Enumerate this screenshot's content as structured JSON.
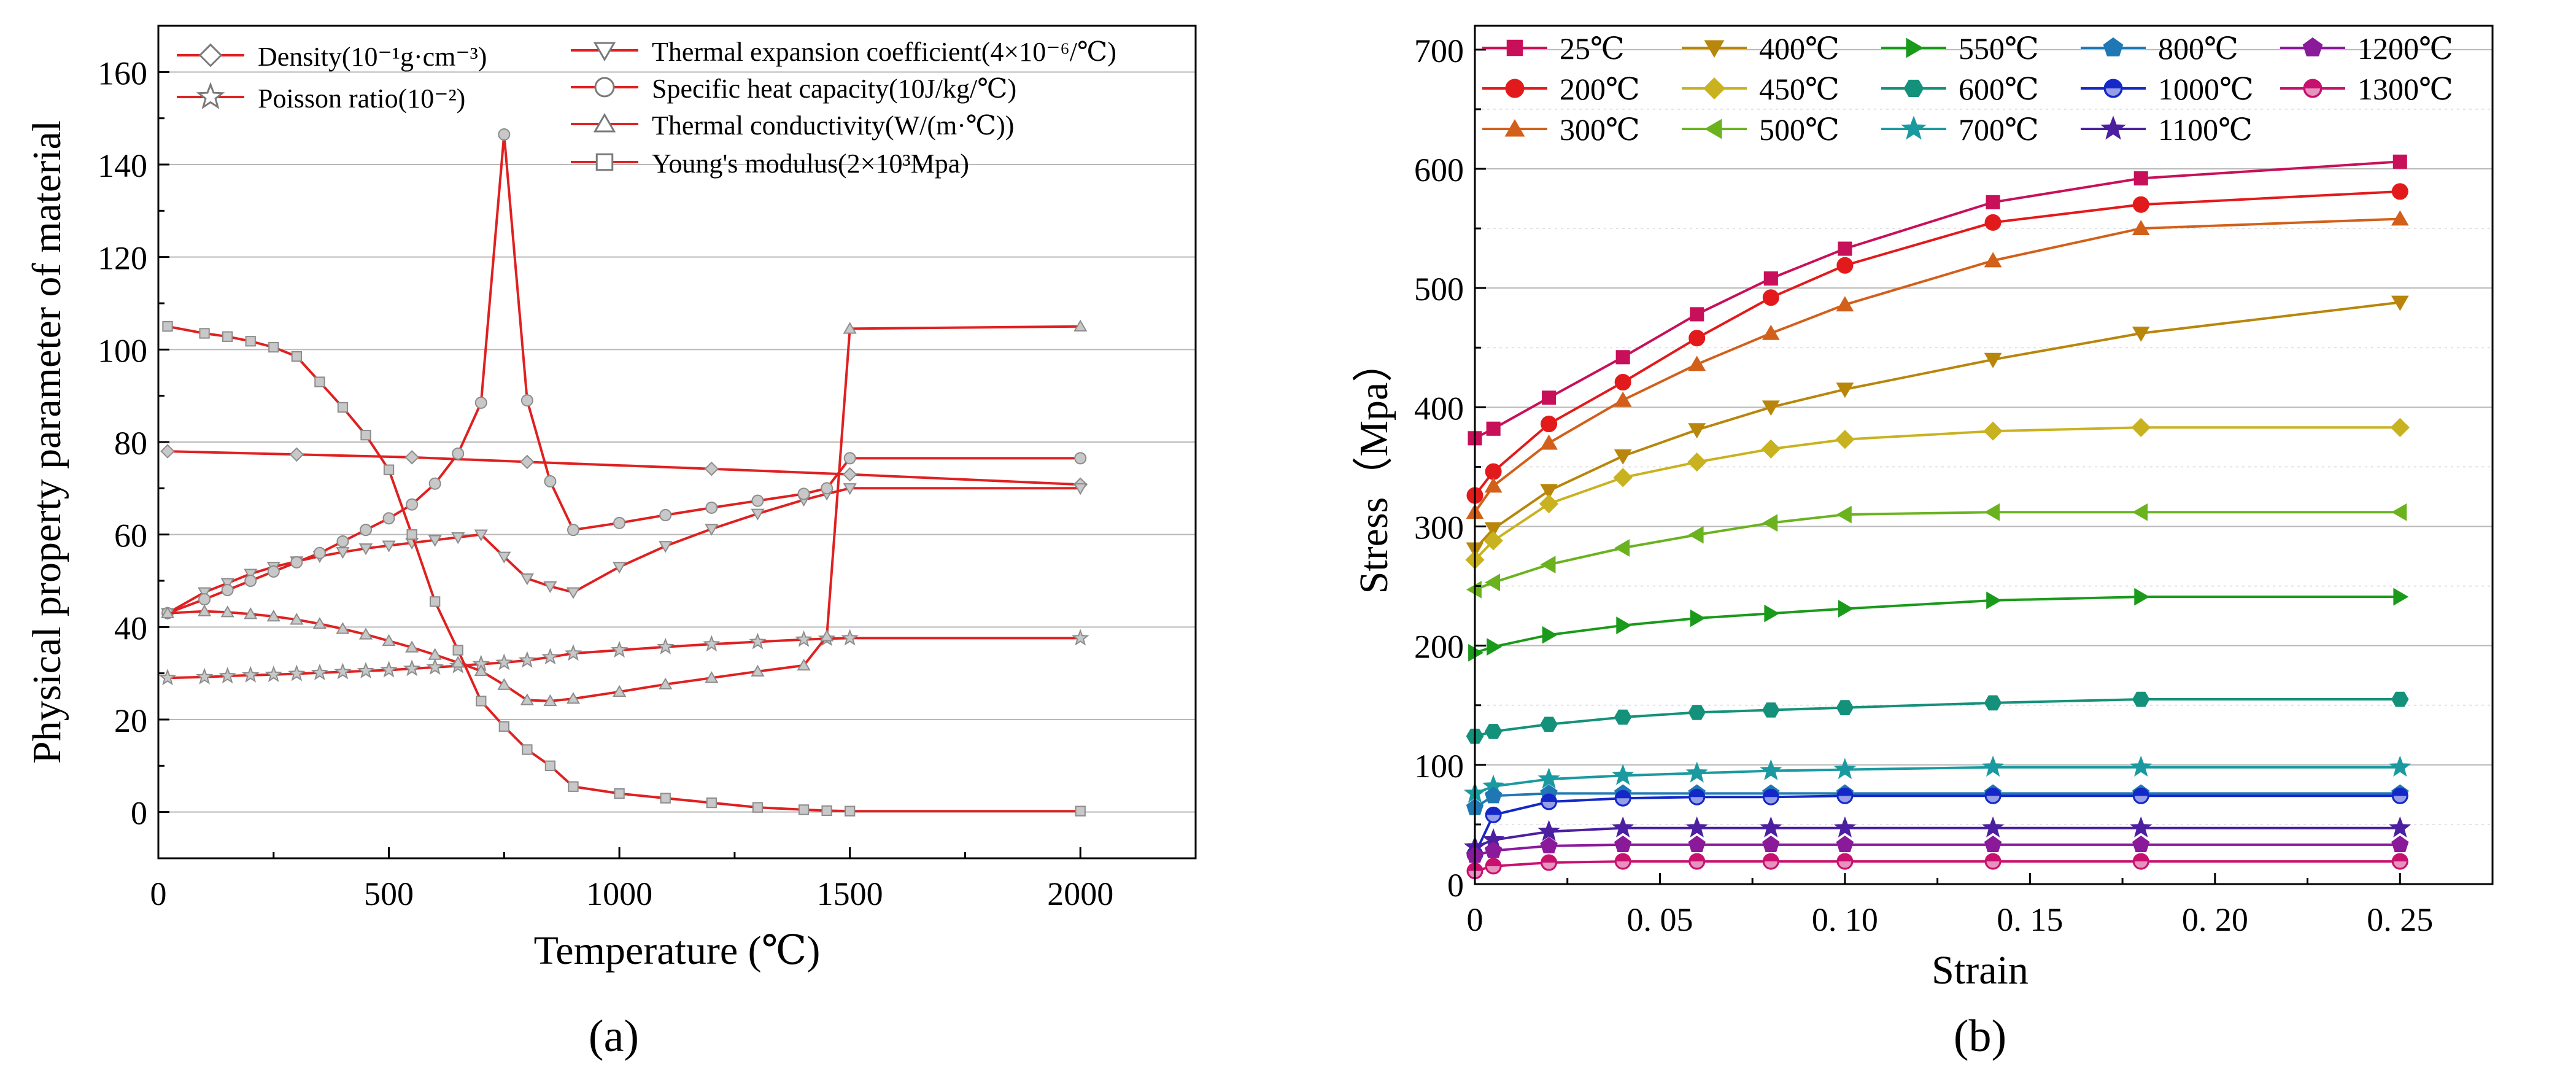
{
  "chart_data": [
    {
      "id": "a",
      "type": "line",
      "panel_label": "(a)",
      "xlabel": "Temperature (℃)",
      "ylabel": "Physical property parameter of material",
      "xlim": [
        0,
        2250
      ],
      "ylim": [
        -10,
        170
      ],
      "xticks": [
        0,
        500,
        1000,
        1500,
        2000
      ],
      "yticks": [
        0,
        20,
        40,
        60,
        80,
        100,
        120,
        140,
        160
      ],
      "xtick_labels": [
        "0",
        "500",
        "1000",
        "1500",
        "2000"
      ],
      "ytick_labels": [
        "0",
        "20",
        "40",
        "60",
        "80",
        "100",
        "120",
        "140",
        "160"
      ],
      "line_color": "#e02020",
      "marker_color": "#8c8c8c",
      "series": [
        {
          "name": "Density(10⁻¹g·cm⁻³)",
          "marker": "diamond",
          "x": [
            20,
            300,
            550,
            800,
            1200,
            1500,
            2000
          ],
          "y": [
            78,
            77.3,
            76.7,
            75.7,
            74.2,
            73,
            70.8
          ]
        },
        {
          "name": "Poisson ratio(10⁻²)",
          "marker": "star",
          "x": [
            20,
            100,
            150,
            200,
            250,
            300,
            350,
            400,
            450,
            500,
            550,
            600,
            650,
            700,
            750,
            800,
            850,
            900,
            1000,
            1100,
            1200,
            1300,
            1400,
            1450,
            1500,
            2000
          ],
          "y": [
            29,
            29.2,
            29.4,
            29.6,
            29.7,
            29.9,
            30.1,
            30.3,
            30.5,
            30.7,
            31,
            31.3,
            31.6,
            32,
            32.3,
            32.8,
            33.5,
            34.3,
            35,
            35.7,
            36.3,
            36.8,
            37.3,
            37.5,
            37.6,
            37.6
          ]
        },
        {
          "name": "Thermal expansion coefficient(4×10⁻⁶/℃)",
          "marker": "triangle-down",
          "x": [
            20,
            100,
            150,
            200,
            250,
            300,
            350,
            400,
            450,
            500,
            550,
            600,
            650,
            700,
            750,
            800,
            850,
            900,
            1000,
            1100,
            1200,
            1300,
            1400,
            1450,
            1500,
            2000
          ],
          "y": [
            43,
            47.5,
            49.5,
            51.5,
            53,
            54.2,
            55.3,
            56.2,
            57,
            57.6,
            58.2,
            58.8,
            59.4,
            60,
            55.2,
            50.5,
            48.8,
            47.5,
            53,
            57.5,
            61.2,
            64.5,
            67.5,
            68.8,
            70,
            70
          ]
        },
        {
          "name": "Specific heat capacity(10J/kg/℃)",
          "marker": "circle",
          "x": [
            20,
            100,
            150,
            200,
            250,
            300,
            350,
            400,
            450,
            500,
            550,
            600,
            650,
            700,
            750,
            800,
            850,
            900,
            1000,
            1100,
            1200,
            1300,
            1400,
            1450,
            1500,
            2000
          ],
          "y": [
            43,
            46,
            48,
            50,
            52,
            54,
            56,
            58.5,
            61,
            63.5,
            66.5,
            71,
            77.5,
            88.5,
            146.5,
            89,
            71.5,
            61,
            62.5,
            64.2,
            65.8,
            67.3,
            68.8,
            70,
            76.5,
            76.5
          ]
        },
        {
          "name": "Thermal conductivity(W/(m·℃))",
          "marker": "triangle-up",
          "x": [
            20,
            100,
            150,
            200,
            250,
            300,
            350,
            400,
            450,
            500,
            550,
            600,
            650,
            700,
            750,
            800,
            850,
            900,
            1000,
            1100,
            1200,
            1300,
            1400,
            1450,
            1500,
            2000
          ],
          "y": [
            43,
            43.4,
            43.2,
            42.8,
            42.3,
            41.6,
            40.7,
            39.6,
            38.4,
            37,
            35.6,
            34,
            32.3,
            30.5,
            27.5,
            24.2,
            24,
            24.5,
            26,
            27.6,
            29,
            30.4,
            31.7,
            38,
            104.5,
            105
          ]
        },
        {
          "name": "Young's modulus(2×10³Mpa)",
          "marker": "square",
          "x": [
            20,
            100,
            150,
            200,
            250,
            300,
            350,
            400,
            450,
            500,
            550,
            600,
            650,
            700,
            750,
            800,
            850,
            900,
            1000,
            1100,
            1200,
            1300,
            1400,
            1450,
            1500,
            2000
          ],
          "y": [
            105,
            103.5,
            102.8,
            101.8,
            100.5,
            98.5,
            93,
            87.5,
            81.5,
            74,
            60,
            45.5,
            35,
            24,
            18.5,
            13.5,
            10,
            5.5,
            4,
            3,
            2,
            1,
            0.5,
            0.3,
            0.2,
            0.2
          ]
        }
      ]
    },
    {
      "id": "b",
      "type": "line",
      "panel_label": "(b)",
      "xlabel": "Strain",
      "ylabel": "Stress（Mpa）",
      "xlim": [
        0,
        0.275
      ],
      "ylim": [
        0,
        720
      ],
      "xticks": [
        0,
        0.05,
        0.1,
        0.15,
        0.2,
        0.25
      ],
      "yticks": [
        0,
        100,
        200,
        300,
        400,
        500,
        600,
        700
      ],
      "xtick_labels": [
        "0",
        "0. 05",
        "0. 10",
        "0. 15",
        "0. 20",
        "0. 25"
      ],
      "ytick_labels": [
        "0",
        "100",
        "200",
        "300",
        "400",
        "500",
        "600",
        "700"
      ],
      "series": [
        {
          "name": "25℃",
          "color": "#c8105a",
          "marker": "square",
          "x": [
            0,
            0.005,
            0.02,
            0.04,
            0.06,
            0.08,
            0.1,
            0.14,
            0.18,
            0.25
          ],
          "y": [
            374,
            382,
            408,
            442,
            478,
            508,
            533,
            572,
            592,
            606
          ]
        },
        {
          "name": "200℃",
          "color": "#e31a1c",
          "marker": "circle",
          "x": [
            0,
            0.005,
            0.02,
            0.04,
            0.06,
            0.08,
            0.1,
            0.14,
            0.18,
            0.25
          ],
          "y": [
            326,
            346,
            386,
            421,
            458,
            492,
            519,
            555,
            570,
            581
          ]
        },
        {
          "name": "300℃",
          "color": "#d2601a",
          "marker": "triangle-up",
          "x": [
            0,
            0.005,
            0.02,
            0.04,
            0.06,
            0.08,
            0.1,
            0.14,
            0.18,
            0.25
          ],
          "y": [
            312,
            334,
            370,
            406,
            436,
            462,
            486,
            523,
            550,
            558
          ]
        },
        {
          "name": "400℃",
          "color": "#b8860b",
          "marker": "triangle-down",
          "x": [
            0,
            0.005,
            0.02,
            0.04,
            0.06,
            0.08,
            0.1,
            0.14,
            0.18,
            0.25
          ],
          "y": [
            281,
            298,
            330,
            359,
            381,
            400,
            415,
            440,
            462,
            488
          ]
        },
        {
          "name": "450℃",
          "color": "#c9b21f",
          "marker": "diamond",
          "x": [
            0,
            0.005,
            0.02,
            0.04,
            0.06,
            0.08,
            0.1,
            0.14,
            0.18,
            0.25
          ],
          "y": [
            272,
            288,
            319,
            341,
            354,
            365,
            373,
            380,
            383,
            383
          ]
        },
        {
          "name": "500℃",
          "color": "#6ab31f",
          "marker": "triangle-left",
          "x": [
            0,
            0.005,
            0.02,
            0.04,
            0.06,
            0.08,
            0.1,
            0.14,
            0.18,
            0.25
          ],
          "y": [
            247,
            253,
            268,
            282,
            293,
            303,
            310,
            312,
            312,
            312
          ]
        },
        {
          "name": "550℃",
          "color": "#1a9a1a",
          "marker": "triangle-right",
          "x": [
            0,
            0.005,
            0.02,
            0.04,
            0.06,
            0.08,
            0.1,
            0.14,
            0.18,
            0.25
          ],
          "y": [
            194,
            199,
            209,
            217,
            223,
            227,
            231,
            238,
            241,
            241
          ]
        },
        {
          "name": "600℃",
          "color": "#14917a",
          "marker": "hexagon",
          "x": [
            0,
            0.005,
            0.02,
            0.04,
            0.06,
            0.08,
            0.1,
            0.14,
            0.18,
            0.25
          ],
          "y": [
            124,
            128,
            134,
            140,
            144,
            146,
            148,
            152,
            155,
            155
          ]
        },
        {
          "name": "700℃",
          "color": "#1a9aa0",
          "marker": "star",
          "x": [
            0,
            0.005,
            0.02,
            0.04,
            0.06,
            0.08,
            0.1,
            0.14,
            0.18,
            0.25
          ],
          "y": [
            76,
            82,
            88,
            91,
            93,
            95,
            96,
            98,
            98,
            98
          ]
        },
        {
          "name": "800℃",
          "color": "#1f78b4",
          "marker": "pentagon",
          "x": [
            0,
            0.005,
            0.02,
            0.04,
            0.06,
            0.08,
            0.1,
            0.14,
            0.18,
            0.25
          ],
          "y": [
            64,
            74,
            76,
            76,
            76,
            76,
            76,
            76,
            76,
            76
          ]
        },
        {
          "name": "1000℃",
          "color": "#1428c8",
          "marker": "circle-half",
          "x": [
            0,
            0.005,
            0.02,
            0.04,
            0.06,
            0.08,
            0.1,
            0.14,
            0.18,
            0.25
          ],
          "y": [
            25,
            58,
            69,
            72,
            73,
            73,
            74,
            74,
            74,
            74
          ]
        },
        {
          "name": "1100℃",
          "color": "#4b1fa0",
          "marker": "star",
          "x": [
            0,
            0.005,
            0.02,
            0.04,
            0.06,
            0.08,
            0.1,
            0.14,
            0.18,
            0.25
          ],
          "y": [
            31,
            37,
            44,
            47,
            47,
            47,
            47,
            47,
            47,
            47
          ]
        },
        {
          "name": "1200℃",
          "color": "#8a1a9a",
          "marker": "pentagon",
          "x": [
            0,
            0.005,
            0.02,
            0.04,
            0.06,
            0.08,
            0.1,
            0.14,
            0.18,
            0.25
          ],
          "y": [
            24,
            28,
            32,
            33,
            33,
            33,
            33,
            33,
            33,
            33
          ]
        },
        {
          "name": "1300℃",
          "color": "#c8106e",
          "marker": "circle-half",
          "x": [
            0,
            0.005,
            0.02,
            0.04,
            0.06,
            0.08,
            0.1,
            0.14,
            0.18,
            0.25
          ],
          "y": [
            11,
            15,
            18,
            19,
            19,
            19,
            19,
            19,
            19,
            19
          ]
        }
      ]
    }
  ]
}
